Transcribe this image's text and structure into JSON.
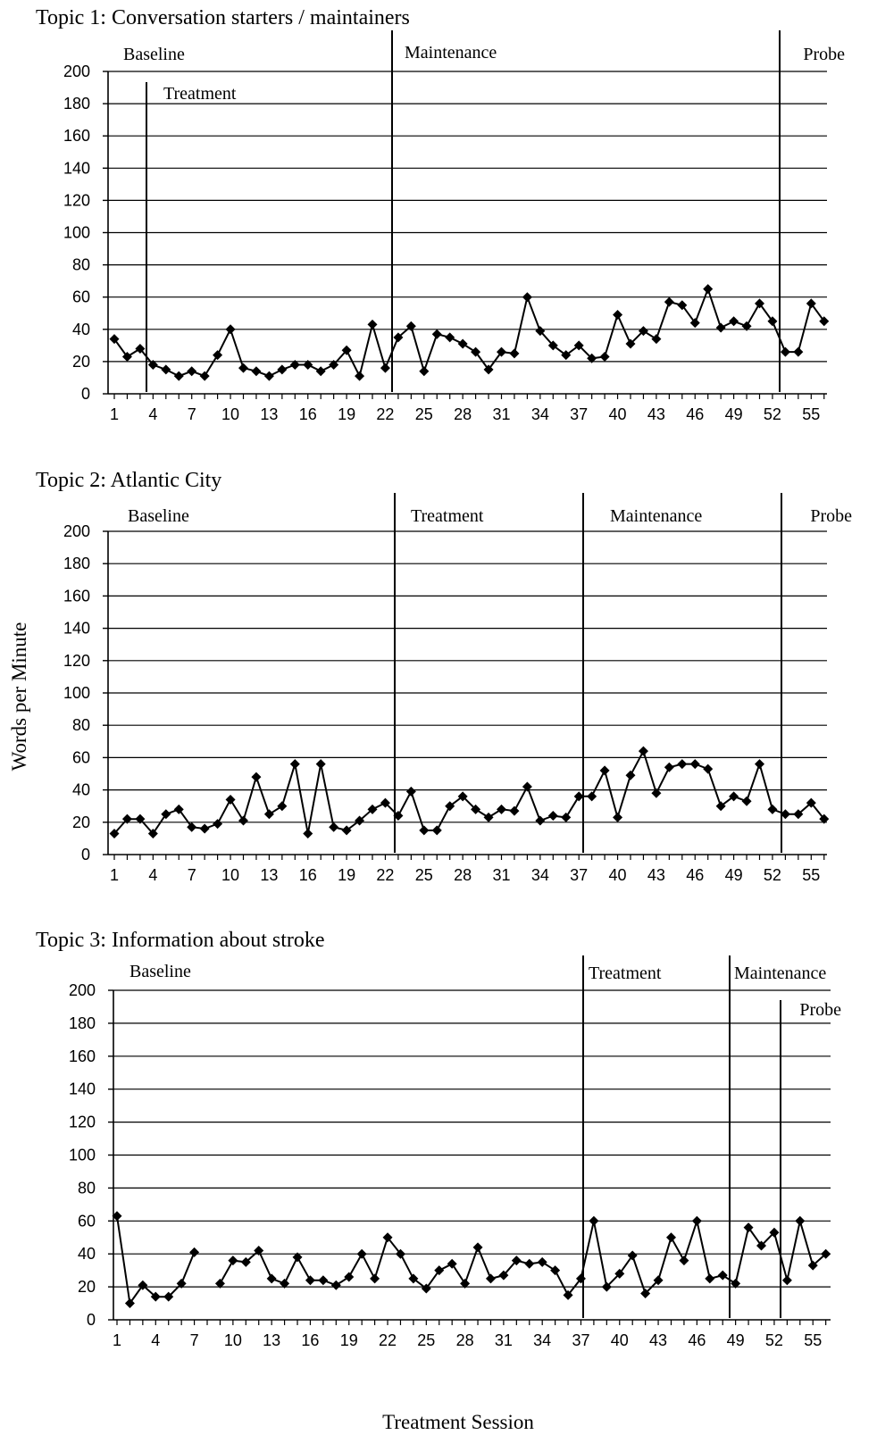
{
  "figure": {
    "ylabel": "Words per Minute",
    "xlabel": "Treatment Session"
  },
  "chart_data": [
    {
      "type": "line",
      "title": "Topic 1: Conversation starters / maintainers",
      "xlabel": "Treatment Session",
      "ylabel": "Words per Minute",
      "ylim": [
        0,
        200
      ],
      "yticks": [
        0,
        20,
        40,
        60,
        80,
        100,
        120,
        140,
        160,
        180,
        200
      ],
      "xticks": [
        1,
        4,
        7,
        10,
        13,
        16,
        19,
        22,
        25,
        28,
        31,
        34,
        37,
        40,
        43,
        46,
        49,
        52,
        55
      ],
      "xlim": [
        1,
        56
      ],
      "grid": "horizontal",
      "phases": [
        {
          "label": "Baseline",
          "start": 1
        },
        {
          "label": "Treatment",
          "start": 3.5
        },
        {
          "label": "Maintenance",
          "start": 22.5
        },
        {
          "label": "Probe",
          "start": 52.5
        }
      ],
      "series": [
        {
          "x": [
            1,
            2,
            3,
            4,
            5,
            6,
            7,
            8,
            9,
            10,
            11,
            12,
            13,
            14,
            15,
            16,
            17,
            18,
            19,
            20,
            21,
            22,
            23,
            24,
            25,
            26,
            27,
            28,
            29,
            30,
            31,
            32,
            33,
            34,
            35,
            36,
            37,
            38,
            39,
            40,
            41,
            42,
            43,
            44,
            45,
            46,
            47,
            48,
            49,
            50,
            51,
            52,
            53,
            54,
            55,
            56
          ],
          "values": [
            34,
            23,
            28,
            18,
            15,
            11,
            14,
            11,
            24,
            40,
            16,
            14,
            11,
            15,
            18,
            18,
            14,
            18,
            27,
            11,
            43,
            16,
            35,
            42,
            14,
            37,
            35,
            31,
            26,
            15,
            26,
            25,
            60,
            39,
            30,
            24,
            30,
            22,
            23,
            49,
            31,
            39,
            34,
            57,
            55,
            44,
            65,
            41,
            45,
            42,
            56,
            45,
            26,
            26,
            56,
            45
          ]
        }
      ]
    },
    {
      "type": "line",
      "title": "Topic 2: Atlantic City",
      "xlabel": "Treatment Session",
      "ylabel": "Words per Minute",
      "ylim": [
        0,
        200
      ],
      "yticks": [
        0,
        20,
        40,
        60,
        80,
        100,
        120,
        140,
        160,
        180,
        200
      ],
      "xticks": [
        1,
        4,
        7,
        10,
        13,
        16,
        19,
        22,
        25,
        28,
        31,
        34,
        37,
        40,
        43,
        46,
        49,
        52,
        55
      ],
      "xlim": [
        1,
        56
      ],
      "grid": "horizontal",
      "phases": [
        {
          "label": "Baseline",
          "start": 1
        },
        {
          "label": "Treatment",
          "start": 22.5
        },
        {
          "label": "Maintenance",
          "start": 37.2
        },
        {
          "label": "Probe",
          "start": 52.5
        }
      ],
      "series": [
        {
          "x": [
            1,
            2,
            3,
            4,
            5,
            6,
            7,
            8,
            9,
            10,
            11,
            12,
            13,
            14,
            15,
            16,
            17,
            18,
            19,
            20,
            21,
            22,
            23,
            24,
            25,
            26,
            27,
            28,
            29,
            30,
            31,
            32,
            33,
            34,
            35,
            36,
            37,
            38,
            39,
            40,
            41,
            42,
            43,
            44,
            45,
            46,
            47,
            48,
            49,
            50,
            51,
            52,
            53,
            54,
            55,
            56
          ],
          "values": [
            13,
            22,
            22,
            13,
            25,
            28,
            17,
            16,
            19,
            34,
            21,
            48,
            25,
            30,
            56,
            13,
            56,
            17,
            15,
            21,
            28,
            32,
            24,
            39,
            15,
            15,
            30,
            36,
            28,
            23,
            28,
            27,
            42,
            21,
            24,
            23,
            36,
            36,
            52,
            23,
            49,
            64,
            38,
            54,
            56,
            56,
            53,
            30,
            36,
            33,
            56,
            28,
            25,
            25,
            32,
            22
          ]
        }
      ]
    },
    {
      "type": "line",
      "title": "Topic 3:  Information about stroke",
      "xlabel": "Treatment Session",
      "ylabel": "Words per Minute",
      "ylim": [
        0,
        200
      ],
      "yticks": [
        0,
        20,
        40,
        60,
        80,
        100,
        120,
        140,
        160,
        180,
        200
      ],
      "xticks": [
        1,
        4,
        7,
        10,
        13,
        16,
        19,
        22,
        25,
        28,
        31,
        34,
        37,
        40,
        43,
        46,
        49,
        52,
        55
      ],
      "xlim": [
        1,
        56
      ],
      "grid": "horizontal",
      "phases": [
        {
          "label": "Baseline",
          "start": 1
        },
        {
          "label": "Treatment",
          "start": 37.2
        },
        {
          "label": "Maintenance",
          "start": 48.5
        },
        {
          "label": "Probe",
          "start": 52.5
        }
      ],
      "series": [
        {
          "segments": [
            {
              "x": [
                1,
                2,
                3,
                4,
                5,
                6,
                7
              ],
              "values": [
                63,
                10,
                21,
                14,
                14,
                22,
                41
              ]
            },
            {
              "x": [
                9,
                10,
                11,
                12,
                13,
                14,
                15,
                16,
                17,
                18,
                19,
                20,
                21,
                22,
                23,
                24,
                25,
                26,
                27,
                28,
                29,
                30,
                31,
                32,
                33,
                34,
                35,
                36,
                37,
                38,
                39,
                40,
                41,
                42,
                43,
                44,
                45,
                46,
                47,
                48,
                49,
                50,
                51,
                52,
                53,
                54,
                55,
                56
              ],
              "values": [
                22,
                36,
                35,
                42,
                25,
                22,
                38,
                24,
                24,
                21,
                26,
                40,
                25,
                50,
                40,
                25,
                19,
                30,
                34,
                22,
                44,
                25,
                27,
                36,
                34,
                35,
                30,
                15,
                25,
                60,
                20,
                28,
                39,
                16,
                24,
                50,
                36,
                60,
                25,
                27,
                22,
                56,
                45,
                53,
                24,
                60,
                33,
                40
              ]
            }
          ]
        }
      ]
    }
  ]
}
